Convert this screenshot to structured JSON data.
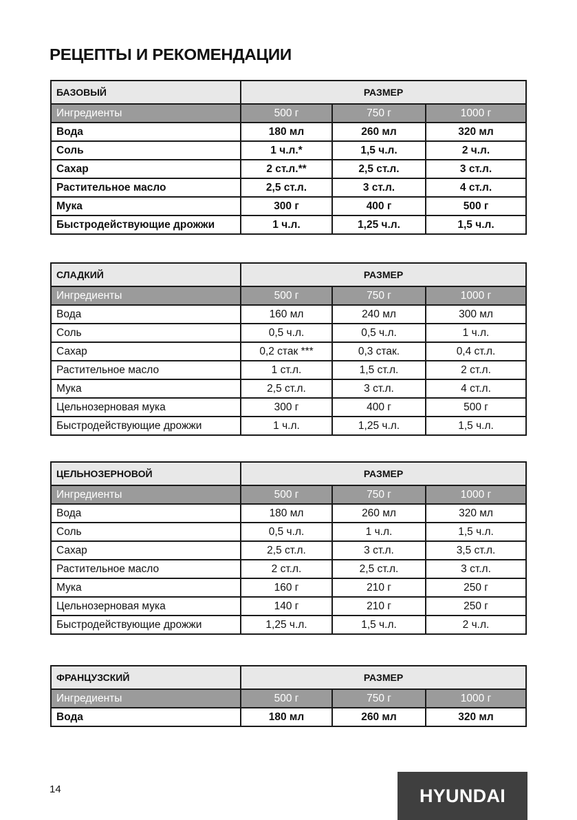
{
  "page_title": "РЕЦЕПТЫ И РЕКОМЕНДАЦИИ",
  "size_header": "РАЗМЕР",
  "ingredients_label": "Ингредиенты",
  "sizes": [
    "500 г",
    "750 г",
    "1000 г"
  ],
  "tables": [
    {
      "name": "БАЗОВЫЙ",
      "rows": [
        {
          "label": "Вода",
          "values": [
            "180 мл",
            "260 мл",
            "320 мл"
          ]
        },
        {
          "label": "Соль",
          "values": [
            "1 ч.л.*",
            "1,5 ч.л.",
            "2 ч.л."
          ]
        },
        {
          "label": "Сахар",
          "values": [
            "2 ст.л.**",
            "2,5 ст.л.",
            "3 ст.л."
          ]
        },
        {
          "label": "Растительное масло",
          "values": [
            "2,5 ст.л.",
            "3 ст.л.",
            "4 ст.л."
          ]
        },
        {
          "label": "Мука",
          "values": [
            "300 г",
            "400 г",
            "500 г"
          ]
        },
        {
          "label": "Быстродействующие дрожжи",
          "values": [
            "1 ч.л.",
            "1,25 ч.л.",
            "1,5 ч.л."
          ]
        }
      ]
    },
    {
      "name": "СЛАДКИЙ",
      "rows": [
        {
          "label": "Вода",
          "values": [
            "160 мл",
            "240 мл",
            "300 мл"
          ]
        },
        {
          "label": "Соль",
          "values": [
            "0,5 ч.л.",
            "0,5 ч.л.",
            "1 ч.л."
          ]
        },
        {
          "label": "Сахар",
          "values": [
            "0,2 стак ***",
            "0,3 стак.",
            "0,4 ст.л."
          ]
        },
        {
          "label": "Растительное масло",
          "values": [
            "1 ст.л.",
            "1,5 ст.л.",
            "2 ст.л."
          ]
        },
        {
          "label": "Мука",
          "values": [
            "2,5 ст.л.",
            "3 ст.л.",
            "4 ст.л."
          ]
        },
        {
          "label": "Цельнозерновая мука",
          "values": [
            "300 г",
            "400 г",
            "500 г"
          ]
        },
        {
          "label": "Быстродействующие дрожжи",
          "values": [
            "1 ч.л.",
            "1,25 ч.л.",
            "1,5 ч.л."
          ]
        }
      ]
    },
    {
      "name": "ЦЕЛЬНОЗЕРНОВОЙ",
      "rows": [
        {
          "label": "Вода",
          "values": [
            "180 мл",
            "260 мл",
            "320 мл"
          ]
        },
        {
          "label": "Соль",
          "values": [
            "0,5 ч.л.",
            "1 ч.л.",
            "1,5 ч.л."
          ]
        },
        {
          "label": "Сахар",
          "values": [
            "2,5 ст.л.",
            "3 ст.л.",
            "3,5 ст.л."
          ]
        },
        {
          "label": "Растительное масло",
          "values": [
            "2 ст.л.",
            "2,5 ст.л.",
            "3 ст.л."
          ]
        },
        {
          "label": "Мука",
          "values": [
            "160 г",
            "210 г",
            "250 г"
          ]
        },
        {
          "label": "Цельнозерновая мука",
          "values": [
            "140 г",
            "210 г",
            "250 г"
          ]
        },
        {
          "label": "Быстродействующие дрожжи",
          "values": [
            "1,25 ч.л.",
            "1,5 ч.л.",
            "2 ч.л."
          ]
        }
      ]
    },
    {
      "name": "ФРАНЦУЗСКИЙ",
      "rows": [
        {
          "label": "Вода",
          "values": [
            "180 мл",
            "260 мл",
            "320 мл"
          ]
        }
      ]
    }
  ],
  "page_number": "14",
  "logo_text": "HYUNDAI"
}
